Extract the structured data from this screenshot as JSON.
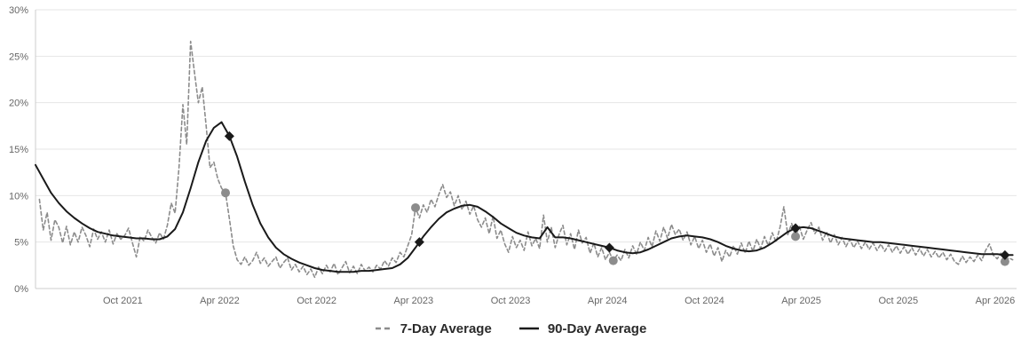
{
  "chart_data": {
    "type": "line",
    "title": "",
    "xlabel": "",
    "ylabel": "",
    "xlim": [
      2021.3,
      2026.36
    ],
    "ylim": [
      0,
      30
    ],
    "grid": "horizontal",
    "legend_position": "bottom-center",
    "colors": {
      "background": "#ffffff",
      "grid": "#e6e6e6",
      "axis_line": "#cccccc",
      "axis_text": "#666666",
      "legend_text": "#2b2b2b"
    },
    "y_ticks": [
      {
        "value": 0,
        "label": "0%"
      },
      {
        "value": 5,
        "label": "5%"
      },
      {
        "value": 10,
        "label": "10%"
      },
      {
        "value": 15,
        "label": "15%"
      },
      {
        "value": 20,
        "label": "20%"
      },
      {
        "value": 25,
        "label": "25%"
      },
      {
        "value": 30,
        "label": "30%"
      }
    ],
    "x_ticks": [
      {
        "value": 2021.75,
        "label": "Oct 2021"
      },
      {
        "value": 2022.25,
        "label": "Apr 2022"
      },
      {
        "value": 2022.75,
        "label": "Oct 2022"
      },
      {
        "value": 2023.25,
        "label": "Apr 2023"
      },
      {
        "value": 2023.75,
        "label": "Oct 2023"
      },
      {
        "value": 2024.25,
        "label": "Apr 2024"
      },
      {
        "value": 2024.75,
        "label": "Oct 2024"
      },
      {
        "value": 2025.25,
        "label": "Apr 2025"
      },
      {
        "value": 2025.75,
        "label": "Oct 2025"
      },
      {
        "value": 2026.25,
        "label": "Apr 2026"
      }
    ],
    "series": [
      {
        "name": "7-Day Average",
        "style": "dashed",
        "color": "#8c8c8c",
        "x0": 2021.32,
        "dx": 0.02,
        "values": [
          9.6,
          6.3,
          8.2,
          5.2,
          7.4,
          6.6,
          4.9,
          6.7,
          4.7,
          6.1,
          5.0,
          6.6,
          5.7,
          4.5,
          6.4,
          5.3,
          6.1,
          5.0,
          6.3,
          4.8,
          5.9,
          5.3,
          5.7,
          6.5,
          4.9,
          3.4,
          5.6,
          5.1,
          6.3,
          5.5,
          4.9,
          6.0,
          5.3,
          6.8,
          9.2,
          8.1,
          13.0,
          19.8,
          15.5,
          26.6,
          23.2,
          20.0,
          21.7,
          17.5,
          13.0,
          13.6,
          11.8,
          10.8,
          10.3,
          7.5,
          4.6,
          3.1,
          2.6,
          3.4,
          2.5,
          3.0,
          3.9,
          2.7,
          3.3,
          2.4,
          2.9,
          3.4,
          2.2,
          2.8,
          3.3,
          2.0,
          2.6,
          1.8,
          2.4,
          1.5,
          2.1,
          1.2,
          2.3,
          1.6,
          2.5,
          1.8,
          2.7,
          1.5,
          2.2,
          2.9,
          1.7,
          2.4,
          1.6,
          2.6,
          1.9,
          2.3,
          1.8,
          2.5,
          2.1,
          3.0,
          2.4,
          3.3,
          2.8,
          3.9,
          3.4,
          4.6,
          5.8,
          8.7,
          7.6,
          9.0,
          8.2,
          9.6,
          8.8,
          10.1,
          11.2,
          9.8,
          10.4,
          8.9,
          10.0,
          8.5,
          9.4,
          8.0,
          8.9,
          7.4,
          6.6,
          7.6,
          5.9,
          7.8,
          5.4,
          6.3,
          4.8,
          3.9,
          5.6,
          4.4,
          5.2,
          4.1,
          6.1,
          4.6,
          5.4,
          4.3,
          7.9,
          5.0,
          6.6,
          4.4,
          5.8,
          6.8,
          4.7,
          5.9,
          4.2,
          6.3,
          4.9,
          5.5,
          3.8,
          4.9,
          3.4,
          4.4,
          3.1,
          3.9,
          3.0,
          3.6,
          3.0,
          4.2,
          3.3,
          4.6,
          3.7,
          5.0,
          4.1,
          5.5,
          4.5,
          6.2,
          5.1,
          6.6,
          5.4,
          6.9,
          5.8,
          6.4,
          5.2,
          6.1,
          4.7,
          5.6,
          4.3,
          5.2,
          3.9,
          4.8,
          3.5,
          4.4,
          2.9,
          4.1,
          3.4,
          4.6,
          3.7,
          4.9,
          3.8,
          5.1,
          4.0,
          5.3,
          4.3,
          5.6,
          4.6,
          6.0,
          5.0,
          6.6,
          8.8,
          5.8,
          7.0,
          5.6,
          6.7,
          5.3,
          6.3,
          7.1,
          5.9,
          6.6,
          5.2,
          6.1,
          4.9,
          5.8,
          4.7,
          5.5,
          4.5,
          5.3,
          4.4,
          5.1,
          4.3,
          5.0,
          4.2,
          4.9,
          4.1,
          4.8,
          4.0,
          4.7,
          3.9,
          4.6,
          3.8,
          4.5,
          3.7,
          4.4,
          3.6,
          4.3,
          3.5,
          4.2,
          3.4,
          4.0,
          3.3,
          3.9,
          3.1,
          3.7,
          2.9,
          2.6,
          3.5,
          2.8,
          3.4,
          2.9,
          3.6,
          3.0,
          4.1,
          4.8,
          3.6,
          3.2,
          3.8,
          2.9,
          3.3,
          3.1
        ]
      },
      {
        "name": "90-Day Average",
        "style": "solid",
        "color": "#1a1a1a",
        "x0": 2021.3,
        "dx": 0.04,
        "values": [
          13.3,
          11.8,
          10.3,
          9.2,
          8.3,
          7.6,
          7.0,
          6.5,
          6.1,
          5.9,
          5.7,
          5.6,
          5.5,
          5.4,
          5.4,
          5.3,
          5.3,
          5.6,
          6.4,
          8.2,
          10.8,
          13.6,
          15.9,
          17.3,
          17.9,
          16.4,
          14.2,
          11.5,
          9.0,
          7.0,
          5.5,
          4.4,
          3.7,
          3.2,
          2.8,
          2.5,
          2.2,
          2.0,
          1.9,
          1.8,
          1.8,
          1.8,
          1.9,
          1.9,
          2.0,
          2.1,
          2.2,
          2.6,
          3.3,
          4.4,
          5.6,
          6.6,
          7.5,
          8.2,
          8.6,
          8.9,
          9.0,
          8.8,
          8.3,
          7.7,
          7.0,
          6.5,
          6.0,
          5.7,
          5.5,
          5.4,
          6.6,
          5.5,
          5.5,
          5.4,
          5.2,
          5.0,
          4.8,
          4.6,
          4.4,
          4.1,
          3.9,
          3.8,
          3.9,
          4.2,
          4.6,
          5.0,
          5.4,
          5.6,
          5.7,
          5.6,
          5.5,
          5.3,
          5.0,
          4.6,
          4.3,
          4.1,
          4.0,
          4.1,
          4.4,
          4.9,
          5.5,
          6.1,
          6.5,
          6.6,
          6.5,
          6.2,
          5.9,
          5.6,
          5.4,
          5.3,
          5.2,
          5.1,
          5.0,
          5.0,
          4.9,
          4.8,
          4.7,
          4.6,
          4.5,
          4.4,
          4.3,
          4.2,
          4.1,
          4.0,
          3.9,
          3.8,
          3.7,
          3.7,
          3.7,
          3.6,
          3.6
        ]
      }
    ],
    "markers": [
      {
        "shape": "circle",
        "series": "7-Day Average",
        "color": "#8c8c8c",
        "points": [
          [
            2022.28,
            10.3
          ],
          [
            2023.26,
            8.7
          ],
          [
            2024.28,
            3.0
          ],
          [
            2025.22,
            5.6
          ],
          [
            2026.3,
            2.9
          ]
        ]
      },
      {
        "shape": "diamond",
        "series": "90-Day Average",
        "color": "#1a1a1a",
        "points": [
          [
            2022.3,
            16.4
          ],
          [
            2023.28,
            5.0
          ],
          [
            2024.26,
            4.4
          ],
          [
            2025.22,
            6.5
          ],
          [
            2026.3,
            3.6
          ]
        ]
      }
    ]
  }
}
